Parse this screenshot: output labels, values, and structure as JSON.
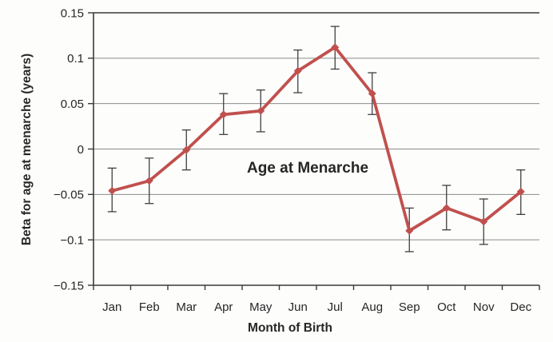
{
  "colors": {
    "line": "#C0504D",
    "marker": "#C0504D",
    "error_bar": "#3f3f3f",
    "grid": "#8c8c8c",
    "axis": "#3a3a3a",
    "text": "#262626",
    "annotation": "#E8336E",
    "background": "#fdfdfc"
  },
  "chart_data": {
    "type": "line",
    "annotation": "Age at Menarche",
    "xlabel": "Month of Birth",
    "ylabel": "Beta for age at menarche (years)",
    "categories": [
      "Jan",
      "Feb",
      "Mar",
      "Apr",
      "May",
      "Jun",
      "Jul",
      "Aug",
      "Sep",
      "Oct",
      "Nov",
      "Dec"
    ],
    "series": [
      {
        "name": "Age at Menarche",
        "values": [
          -0.046,
          -0.035,
          -0.001,
          0.038,
          0.042,
          0.086,
          0.112,
          0.061,
          -0.09,
          -0.065,
          -0.08,
          -0.047
        ],
        "error_low": [
          -0.069,
          -0.06,
          -0.023,
          0.016,
          0.019,
          0.062,
          0.088,
          0.038,
          -0.113,
          -0.089,
          -0.105,
          -0.072
        ],
        "error_high": [
          -0.021,
          -0.01,
          0.021,
          0.061,
          0.065,
          0.109,
          0.135,
          0.084,
          -0.065,
          -0.04,
          -0.055,
          -0.023
        ]
      }
    ],
    "ylim": [
      -0.15,
      0.15
    ],
    "yticks": [
      0.15,
      0.1,
      0.05,
      0,
      -0.05,
      -0.1,
      -0.15
    ],
    "ytick_labels": [
      "0.15",
      "0.1",
      "0.05",
      "0",
      "−0.05",
      "−0.1",
      "−0.15"
    ],
    "grid": "horizontal",
    "marker": "diamond",
    "legend": "none"
  }
}
